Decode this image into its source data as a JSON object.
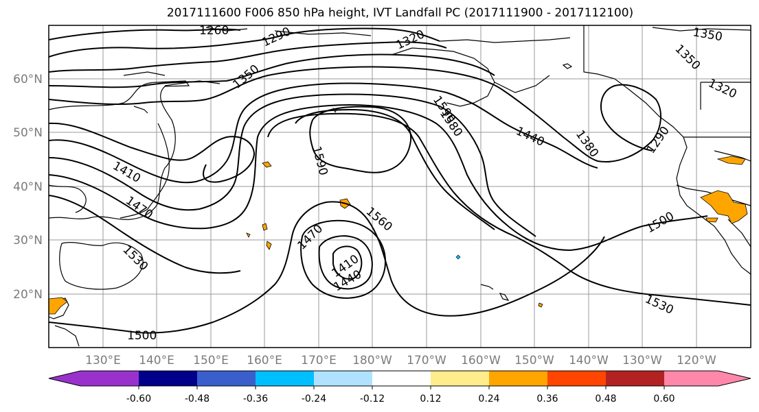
{
  "title": "2017111600 F006 850 hPa height, IVT Landfall PC (2017111900 - 2017112100)",
  "lat_labels": [
    "60°N",
    "50°N",
    "40°N",
    "30°N",
    "20°N"
  ],
  "lon_labels": [
    "130°E",
    "140°E",
    "150°E",
    "160°E",
    "170°E",
    "180°W",
    "170°W",
    "160°W",
    "150°W",
    "140°W",
    "130°W",
    "120°W"
  ],
  "contour_labels": [
    "1260",
    "1290",
    "1320",
    "1350",
    "1350",
    "1350",
    "1320",
    "1590",
    "1580",
    "1440",
    "1380",
    "1290",
    "1410",
    "1470",
    "1530",
    "1590",
    "1560",
    "1470",
    "1410",
    "1440",
    "1500",
    "1530",
    "1500"
  ],
  "colorbar": {
    "colors": [
      "#9932cc",
      "#00008b",
      "#3a5fcd",
      "#00bfff",
      "#b0e2ff",
      "#ffffff",
      "#ffec8b",
      "#ffa500",
      "#ff4500",
      "#b22222",
      "#ff88aa"
    ],
    "tick_labels": [
      "-0.60",
      "-0.48",
      "-0.36",
      "-0.24",
      "-0.12",
      "0.12",
      "0.24",
      "0.36",
      "0.48",
      "0.60"
    ]
  },
  "colors": {
    "contour": "#000000",
    "grid": "#999999",
    "positive_fill": "#ffa500"
  }
}
